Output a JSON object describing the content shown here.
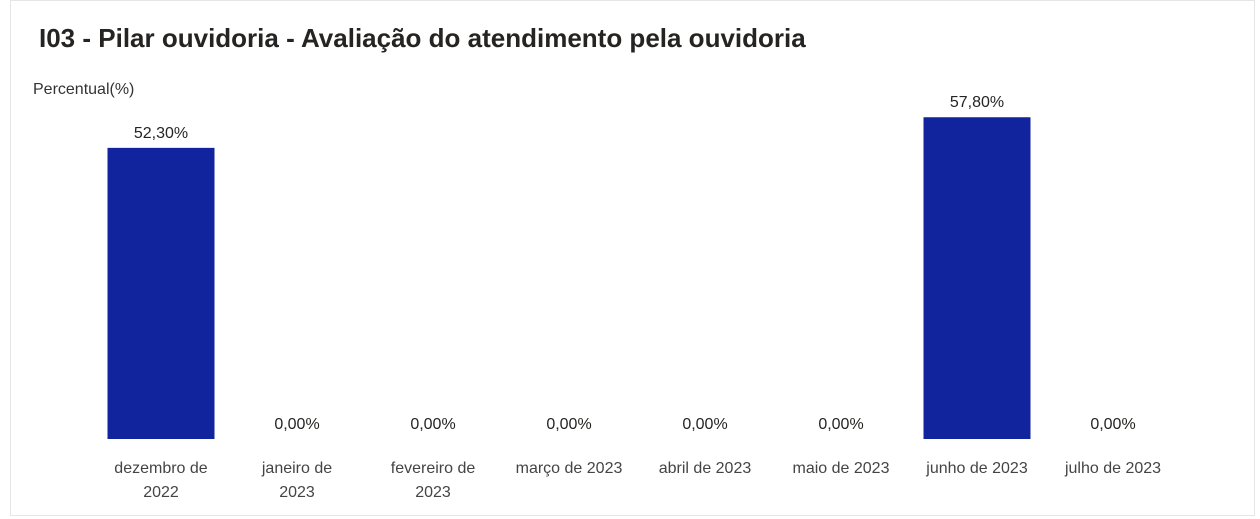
{
  "chart_data": {
    "type": "bar",
    "title": "I03 - Pilar ouvidoria - Avaliação do atendimento pela ouvidoria",
    "ylabel": "Percentual(%)",
    "xlabel": "",
    "categories": [
      [
        "dezembro de",
        "2022"
      ],
      [
        "janeiro de",
        "2023"
      ],
      [
        "fevereiro de",
        "2023"
      ],
      [
        "março de 2023"
      ],
      [
        "abril de 2023"
      ],
      [
        "maio de 2023"
      ],
      [
        "junho de 2023"
      ],
      [
        "julho de 2023"
      ]
    ],
    "values": [
      52.3,
      0,
      0,
      0,
      0,
      0,
      57.8,
      0
    ],
    "data_labels": [
      "52,30%",
      "0,00%",
      "0,00%",
      "0,00%",
      "0,00%",
      "0,00%",
      "57,80%",
      "0,00%"
    ],
    "ylim": [
      0,
      60
    ],
    "grid": false,
    "bar_color": "#12239e",
    "legend": "none"
  }
}
